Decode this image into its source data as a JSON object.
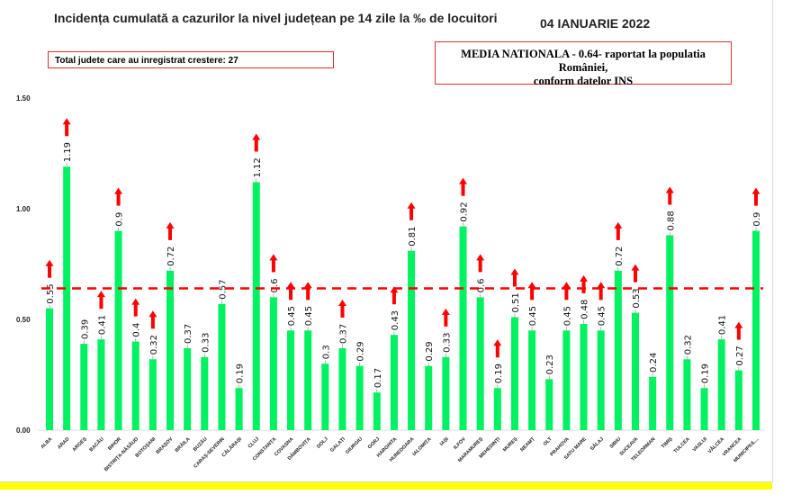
{
  "chart_data": {
    "type": "bar",
    "title": "Incidența cumulată a cazurilor la nivel județean pe 14 zile la ‰ de locuitori",
    "date": "04 IANUARIE 2022",
    "info_box": "Total judete care au inregistrat crestere: 27",
    "national_box_line1": "MEDIA NATIONALA - 0.64-  raportat la populatia României,",
    "national_box_line2": "conform datelor INS",
    "national_average": 0.64,
    "ylim": [
      0,
      1.5
    ],
    "yticks": [
      "0.00",
      "0.50",
      "1.00",
      "1.50"
    ],
    "categories": [
      "ALBA",
      "ARAD",
      "ARGEȘ",
      "BACĂU",
      "BIHOR",
      "BISTRIȚA-NĂSĂUD",
      "BOTOȘANI",
      "BRAȘOV",
      "BRĂILA",
      "BUZĂU",
      "CARAȘ-SEVERIN",
      "CĂLĂRAȘI",
      "CLUJ",
      "CONSTANȚA",
      "COVASNA",
      "DÂMBOVIȚA",
      "DOLJ",
      "GALAȚI",
      "GIURGIU",
      "GORJ",
      "HARGHITA",
      "HUNEDOARA",
      "IALOMIȚA",
      "IAȘI",
      "ILFOV",
      "MARAMUREȘ",
      "MEHEDINȚI",
      "MUREȘ",
      "NEAMȚ",
      "OLT",
      "PRAHOVA",
      "SATU MARE",
      "SĂLAJ",
      "SIBIU",
      "SUCEAVA",
      "TELEORMAN",
      "TIMIȘ",
      "TULCEA",
      "VASLUI",
      "VÂLCEA",
      "VRANCEA",
      "MUNICIPIUL..."
    ],
    "values": [
      0.55,
      1.19,
      0.39,
      0.41,
      0.9,
      0.4,
      0.32,
      0.72,
      0.37,
      0.33,
      0.57,
      0.19,
      1.12,
      0.6,
      0.45,
      0.45,
      0.3,
      0.37,
      0.29,
      0.17,
      0.43,
      0.81,
      0.29,
      0.33,
      0.92,
      0.6,
      0.19,
      0.51,
      0.45,
      0.23,
      0.45,
      0.48,
      0.45,
      0.72,
      0.53,
      0.24,
      0.88,
      0.32,
      0.19,
      0.41,
      0.27,
      0.9
    ],
    "increase": [
      true,
      true,
      false,
      true,
      true,
      true,
      true,
      true,
      false,
      false,
      false,
      false,
      true,
      true,
      true,
      true,
      false,
      true,
      false,
      false,
      true,
      true,
      false,
      true,
      true,
      true,
      true,
      true,
      true,
      false,
      true,
      true,
      true,
      true,
      true,
      false,
      true,
      false,
      false,
      false,
      true,
      true
    ],
    "colors": {
      "bar": "#00f260",
      "average_line": "#ff0000",
      "arrow": "#ff0000"
    }
  }
}
